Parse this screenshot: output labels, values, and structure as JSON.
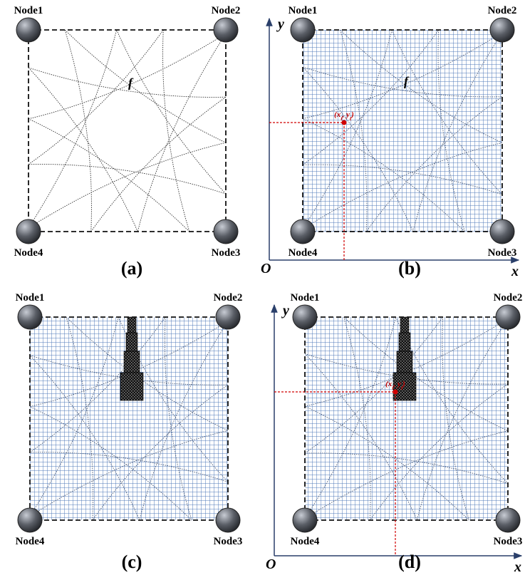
{
  "panels": [
    {
      "label": "(a)",
      "nodes": [
        "Node1",
        "Node2",
        "Node3",
        "Node4"
      ],
      "field_label": "f"
    },
    {
      "label": "(b)",
      "nodes": [
        "Node1",
        "Node2",
        "Node3",
        "Node4"
      ],
      "field_label": "f",
      "axes": {
        "origin": "O",
        "x": "x",
        "y": "y"
      },
      "point_label": [
        "(x",
        "t",
        ", y",
        "t",
        ")"
      ]
    },
    {
      "label": "(c)",
      "nodes": [
        "Node1",
        "Node2",
        "Node3",
        "Node4"
      ]
    },
    {
      "label": "(d)",
      "nodes": [
        "Node1",
        "Node2",
        "Node3",
        "Node4"
      ],
      "axes": {
        "origin": "O",
        "x": "x",
        "y": "y"
      },
      "point_label": [
        "(x",
        "t",
        ", y",
        "t",
        ")"
      ]
    }
  ]
}
